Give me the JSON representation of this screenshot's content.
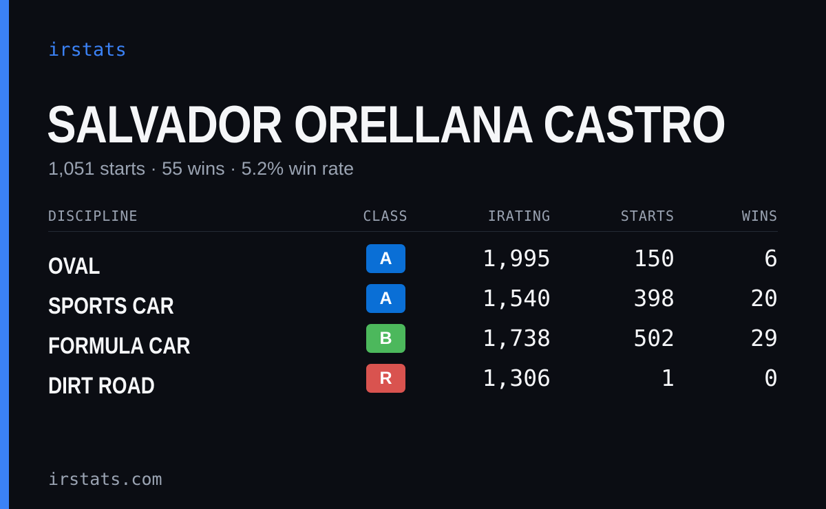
{
  "brand": "irstats",
  "player": {
    "name": "SALVADOR ORELLANA CASTRO",
    "summary": "1,051 starts · 55 wins · 5.2% win rate"
  },
  "table": {
    "headers": {
      "discipline": "DISCIPLINE",
      "class": "CLASS",
      "irating": "IRATING",
      "starts": "STARTS",
      "wins": "WINS"
    },
    "rows": [
      {
        "discipline": "OVAL",
        "class": "A",
        "class_color": "#0a6fd6",
        "irating": "1,995",
        "starts": "150",
        "wins": "6"
      },
      {
        "discipline": "SPORTS CAR",
        "class": "A",
        "class_color": "#0a6fd6",
        "irating": "1,540",
        "starts": "398",
        "wins": "20"
      },
      {
        "discipline": "FORMULA CAR",
        "class": "B",
        "class_color": "#4cb85c",
        "irating": "1,738",
        "starts": "502",
        "wins": "29"
      },
      {
        "discipline": "DIRT ROAD",
        "class": "R",
        "class_color": "#d9534f",
        "irating": "1,306",
        "starts": "1",
        "wins": "0"
      }
    ]
  },
  "footer": "irstats.com",
  "colors": {
    "background": "#0b0d13",
    "accent": "#3b82f6",
    "muted_text": "#9aa3b2",
    "primary_text": "#f5f6f8"
  }
}
